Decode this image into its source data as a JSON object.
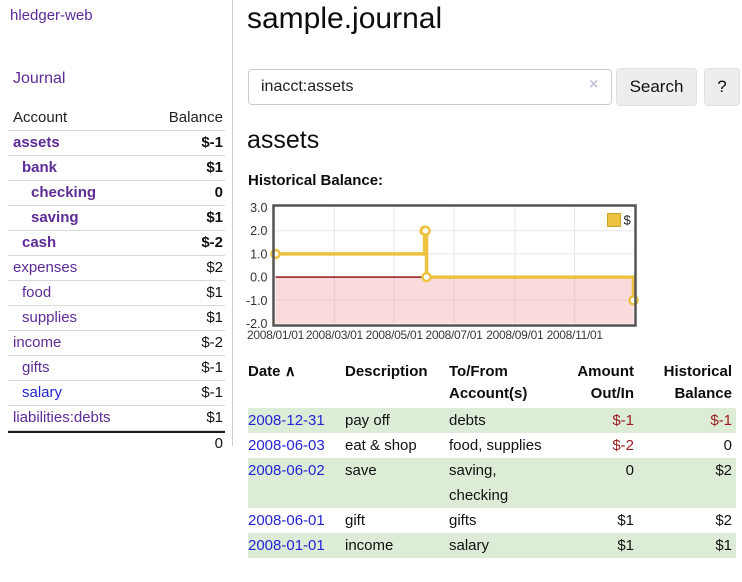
{
  "colors": {
    "link_purple": "#5e2b97",
    "link_blue": "#2424d6",
    "negative_strong": "#9b1c1c",
    "negative_soft": "#c98585",
    "row_green": "#ddecd7",
    "chart_gold": "#edc240",
    "chart_border": "#545454",
    "zero_line": "#8b0000",
    "grid_line": "#e6e6e6"
  },
  "sidebar": {
    "brand": "hledger-web",
    "nav_journal": "Journal",
    "columns": {
      "account": "Account",
      "balance": "Balance"
    },
    "accounts": [
      {
        "name": "assets",
        "balance": "$-1",
        "depth": 0,
        "bold": true,
        "link_color": "purple",
        "balance_style": "neg"
      },
      {
        "name": "bank",
        "balance": "$1",
        "depth": 1,
        "bold": true,
        "link_color": "purple",
        "balance_style": "pos"
      },
      {
        "name": "checking",
        "balance": "0",
        "depth": 2,
        "bold": true,
        "link_color": "purple",
        "balance_style": "pos"
      },
      {
        "name": "saving",
        "balance": "$1",
        "depth": 2,
        "bold": true,
        "link_color": "purple",
        "balance_style": "pos"
      },
      {
        "name": "cash",
        "balance": "$-2",
        "depth": 1,
        "bold": true,
        "link_color": "purple",
        "balance_style": "neg"
      },
      {
        "name": "expenses",
        "balance": "$2",
        "depth": 0,
        "bold": false,
        "link_color": "purple",
        "balance_style": "pos"
      },
      {
        "name": "food",
        "balance": "$1",
        "depth": 1,
        "bold": false,
        "link_color": "purple",
        "balance_style": "pos"
      },
      {
        "name": "supplies",
        "balance": "$1",
        "depth": 1,
        "bold": false,
        "link_color": "purple",
        "balance_style": "pos"
      },
      {
        "name": "income",
        "balance": "$-2",
        "depth": 0,
        "bold": false,
        "link_color": "purple",
        "balance_style": "soft"
      },
      {
        "name": "gifts",
        "balance": "$-1",
        "depth": 1,
        "bold": false,
        "link_color": "purple",
        "balance_style": "soft"
      },
      {
        "name": "salary",
        "balance": "$-1",
        "depth": 1,
        "bold": false,
        "link_color": "blue",
        "balance_style": "soft"
      },
      {
        "name": "liabilities:debts",
        "balance": "$1",
        "depth": 0,
        "bold": false,
        "link_color": "purple",
        "balance_style": "pos"
      }
    ],
    "total": "0"
  },
  "main": {
    "title": "sample.journal",
    "search": {
      "value": "inacct:assets",
      "clear_icon": "×",
      "button_label": "Search",
      "help_label": "?"
    },
    "account_heading": "assets",
    "chart_heading": "Historical Balance:"
  },
  "chart_data": {
    "type": "line",
    "step": true,
    "title": "Historical Balance:",
    "legend": "$",
    "legend_position": "top-right",
    "series": [
      {
        "name": "$",
        "color": "#edc240",
        "points": [
          [
            "2008-01-01",
            1
          ],
          [
            "2008-06-01",
            2
          ],
          [
            "2008-06-02",
            2
          ],
          [
            "2008-06-03",
            0
          ],
          [
            "2008-12-31",
            -1
          ]
        ]
      }
    ],
    "xrange": [
      "2008-01-01",
      "2008-12-31"
    ],
    "ylim": [
      -2,
      3
    ],
    "yticks": [
      [
        3,
        "3.0"
      ],
      [
        2,
        "2.0"
      ],
      [
        1,
        "1.0"
      ],
      [
        0,
        "0.0"
      ],
      [
        -1,
        "-1.0"
      ],
      [
        -2,
        "-2.0"
      ]
    ],
    "xticks": [
      [
        "2008-01-01",
        "2008/01/01"
      ],
      [
        "2008-03-01",
        "2008/03/01"
      ],
      [
        "2008-05-01",
        "2008/05/01"
      ],
      [
        "2008-07-01",
        "2008/07/01"
      ],
      [
        "2008-09-01",
        "2008/09/01"
      ],
      [
        "2008-11-01",
        "2008/11/01"
      ]
    ],
    "grid": true,
    "zero_line_color": "#8b0000",
    "negative_region_fill": "#f19090"
  },
  "register": {
    "columns": [
      "Date",
      "Description",
      "To/From Account(s)",
      "Amount Out/In",
      "Historical Balance"
    ],
    "sort_icon": "∧",
    "rows": [
      {
        "date": "2008-12-31",
        "description": "pay off",
        "accounts": "debts",
        "amount": "$-1",
        "balance": "$-1",
        "amount_style": "neg",
        "balance_style": "neg"
      },
      {
        "date": "2008-06-03",
        "description": "eat & shop",
        "accounts": "food, supplies",
        "amount": "$-2",
        "balance": "0",
        "amount_style": "neg",
        "balance_style": "pos"
      },
      {
        "date": "2008-06-02",
        "description": "save",
        "accounts": "saving, checking",
        "amount": "0",
        "balance": "$2",
        "amount_style": "pos",
        "balance_style": "pos"
      },
      {
        "date": "2008-06-01",
        "description": "gift",
        "accounts": "gifts",
        "amount": "$1",
        "balance": "$2",
        "amount_style": "pos",
        "balance_style": "pos"
      },
      {
        "date": "2008-01-01",
        "description": "income",
        "accounts": "salary",
        "amount": "$1",
        "balance": "$1",
        "amount_style": "pos",
        "balance_style": "pos"
      }
    ]
  }
}
